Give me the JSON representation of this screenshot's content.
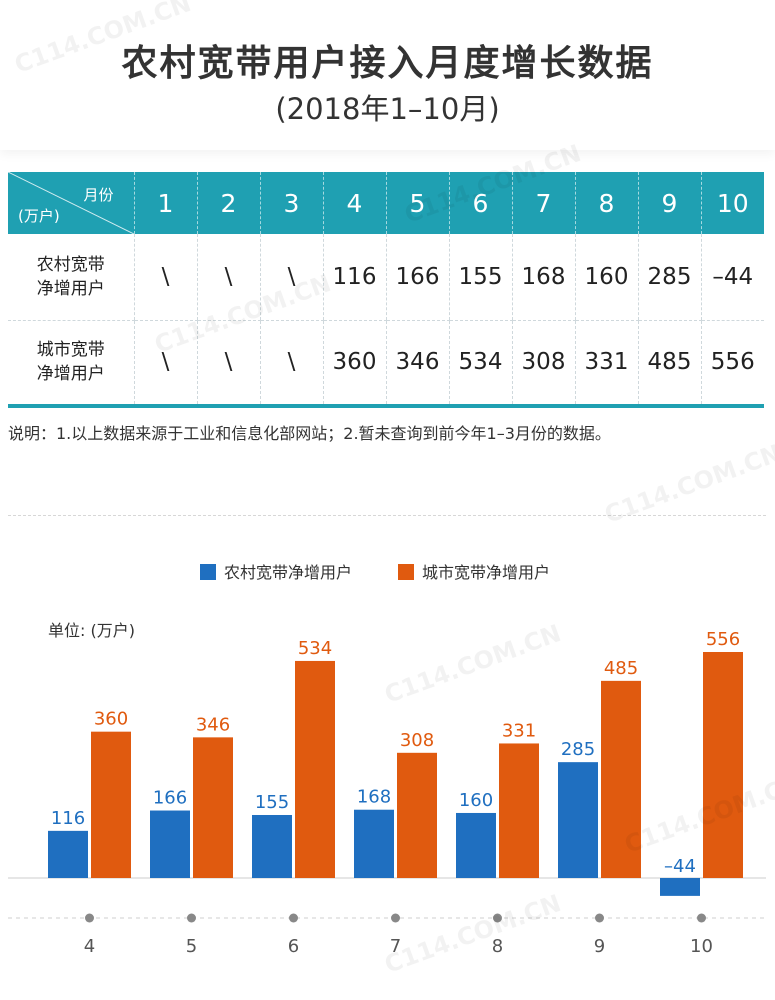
{
  "header": {
    "title": "农村宽带用户接入月度增长数据",
    "subtitle": "(2018年1–10月)"
  },
  "table": {
    "corner_top": "月份",
    "corner_bottom": "(万户)",
    "months": [
      "1",
      "2",
      "3",
      "4",
      "5",
      "6",
      "7",
      "8",
      "9",
      "10"
    ],
    "rows": [
      {
        "label_line1": "农村宽带",
        "label_line2": "净增用户",
        "values": [
          "\\",
          "\\",
          "\\",
          "116",
          "166",
          "155",
          "168",
          "160",
          "285",
          "–44"
        ]
      },
      {
        "label_line1": "城市宽带",
        "label_line2": "净增用户",
        "values": [
          "\\",
          "\\",
          "\\",
          "360",
          "346",
          "534",
          "308",
          "331",
          "485",
          "556"
        ]
      }
    ]
  },
  "note": "说明：1.以上数据来源于工业和信息化部网站；2.暂未查询到前今年1–3月份的数据。",
  "watermark": "C114.COM.CN",
  "chart_data": {
    "type": "bar",
    "categories": [
      "4",
      "5",
      "6",
      "7",
      "8",
      "9",
      "10"
    ],
    "series": [
      {
        "name": "农村宽带净增用户",
        "color": "#1f6fc0",
        "values": [
          116,
          166,
          155,
          168,
          160,
          285,
          -44
        ],
        "labels": [
          "116",
          "166",
          "155",
          "168",
          "160",
          "285",
          "–44"
        ]
      },
      {
        "name": "城市宽带净增用户",
        "color": "#e05a0f",
        "values": [
          360,
          346,
          534,
          308,
          331,
          485,
          556
        ],
        "labels": [
          "360",
          "346",
          "534",
          "308",
          "331",
          "485",
          "556"
        ]
      }
    ],
    "unit_label": "单位: (万户)",
    "ylim": [
      -44,
      556
    ],
    "legend": "top-center",
    "grid": false
  }
}
